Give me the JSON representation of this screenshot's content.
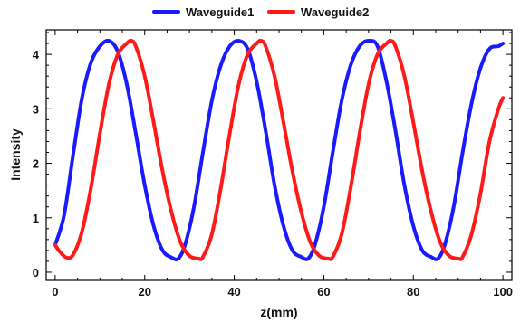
{
  "chart_data": {
    "type": "line",
    "title": "",
    "xlabel": "z(mm)",
    "ylabel": "Intensity",
    "xlim": [
      -2,
      102
    ],
    "ylim": [
      -0.15,
      4.45
    ],
    "xticks": [
      0,
      20,
      40,
      60,
      80,
      100
    ],
    "yticks": [
      0,
      1,
      2,
      3,
      4
    ],
    "grid": false,
    "legend_position": "top-center",
    "series": [
      {
        "name": "Waveguide1",
        "color": "#1a1aff",
        "x": [
          0,
          2,
          4,
          6,
          8,
          10,
          12,
          14,
          16,
          18,
          20,
          22,
          24,
          26,
          27.5,
          29,
          31,
          33,
          35,
          37,
          39,
          41,
          43,
          45,
          47,
          49,
          51,
          53,
          55,
          56.5,
          58,
          60,
          62,
          64,
          66,
          68,
          70,
          72,
          74,
          76,
          78,
          80,
          82,
          84,
          85.5,
          87,
          89,
          91,
          93,
          95,
          97,
          99,
          100
        ],
        "y": [
          0.5,
          1.05,
          2.15,
          3.2,
          3.85,
          4.15,
          4.25,
          4.05,
          3.45,
          2.55,
          1.6,
          0.85,
          0.4,
          0.27,
          0.25,
          0.5,
          1.2,
          2.2,
          3.15,
          3.8,
          4.15,
          4.25,
          4.1,
          3.5,
          2.6,
          1.6,
          0.85,
          0.4,
          0.28,
          0.25,
          0.5,
          1.2,
          2.2,
          3.15,
          3.8,
          4.15,
          4.25,
          4.15,
          3.5,
          2.6,
          1.6,
          0.85,
          0.4,
          0.28,
          0.25,
          0.5,
          1.2,
          2.2,
          3.1,
          3.75,
          4.1,
          4.15,
          4.2
        ]
      },
      {
        "name": "Waveguide2",
        "color": "#ff1a1a",
        "x": [
          0,
          1,
          2.5,
          4,
          6,
          8,
          10,
          12,
          14,
          16,
          17,
          18,
          20,
          22,
          24,
          26,
          28,
          30,
          32,
          33,
          35,
          37,
          39,
          41,
          43,
          45,
          46,
          47,
          49,
          51,
          53,
          55,
          57,
          59,
          61,
          62,
          64,
          66,
          68,
          70,
          72,
          74,
          75,
          76,
          78,
          80,
          82,
          84,
          86,
          88,
          90,
          91,
          93,
          95,
          97,
          99,
          100
        ],
        "y": [
          0.5,
          0.38,
          0.27,
          0.32,
          0.75,
          1.55,
          2.55,
          3.45,
          4.0,
          4.2,
          4.25,
          4.15,
          3.6,
          2.75,
          1.85,
          1.1,
          0.55,
          0.3,
          0.25,
          0.28,
          0.7,
          1.55,
          2.55,
          3.45,
          4.0,
          4.2,
          4.25,
          4.15,
          3.6,
          2.75,
          1.85,
          1.1,
          0.55,
          0.3,
          0.25,
          0.28,
          0.7,
          1.55,
          2.55,
          3.45,
          4.0,
          4.2,
          4.25,
          4.15,
          3.6,
          2.75,
          1.85,
          1.1,
          0.55,
          0.3,
          0.25,
          0.28,
          0.7,
          1.45,
          2.4,
          3.0,
          3.2
        ]
      }
    ]
  }
}
